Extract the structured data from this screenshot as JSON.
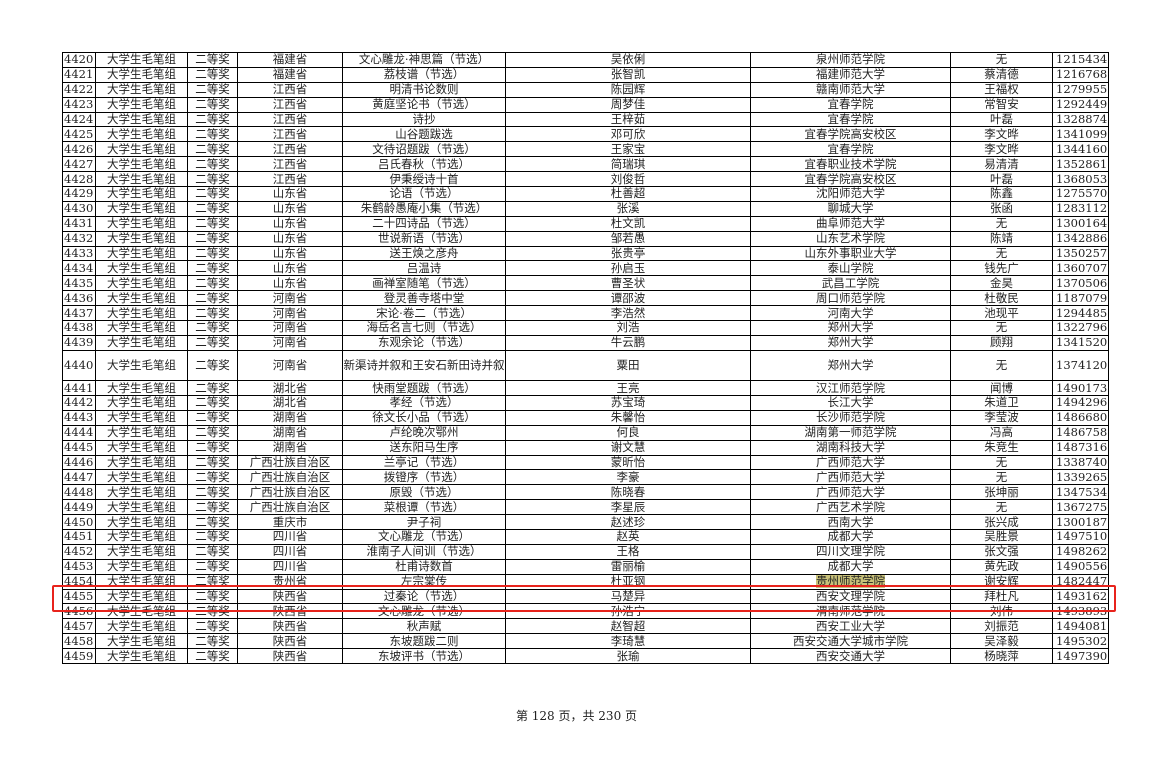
{
  "table": {
    "rows": [
      [
        "4420",
        "大学生毛笔组",
        "二等奖",
        "福建省",
        "文心雕龙·神思篇（节选）",
        "吴依俐",
        "泉州师范学院",
        "无",
        "1215434"
      ],
      [
        "4421",
        "大学生毛笔组",
        "二等奖",
        "福建省",
        "荔枝谱（节选）",
        "张智凯",
        "福建师范大学",
        "蔡清德",
        "1216768"
      ],
      [
        "4422",
        "大学生毛笔组",
        "二等奖",
        "江西省",
        "明清书论数则",
        "陈园辉",
        "赣南师范大学",
        "王福权",
        "1279955"
      ],
      [
        "4423",
        "大学生毛笔组",
        "二等奖",
        "江西省",
        "黄庭坚论书（节选）",
        "周梦佳",
        "宜春学院",
        "常智安",
        "1292449"
      ],
      [
        "4424",
        "大学生毛笔组",
        "二等奖",
        "江西省",
        "诗抄",
        "王梓茹",
        "宜春学院",
        "叶磊",
        "1328874"
      ],
      [
        "4425",
        "大学生毛笔组",
        "二等奖",
        "江西省",
        "山谷题跋选",
        "邓可欣",
        "宜春学院高安校区",
        "李文晔",
        "1341099"
      ],
      [
        "4426",
        "大学生毛笔组",
        "二等奖",
        "江西省",
        "文待诏题跋（节选）",
        "王家宝",
        "宜春学院",
        "李文晔",
        "1344160"
      ],
      [
        "4427",
        "大学生毛笔组",
        "二等奖",
        "江西省",
        "吕氏春秋（节选）",
        "简瑞琪",
        "宜春职业技术学院",
        "易清清",
        "1352861"
      ],
      [
        "4428",
        "大学生毛笔组",
        "二等奖",
        "江西省",
        "伊秉绶诗十首",
        "刘俊哲",
        "宜春学院高安校区",
        "叶磊",
        "1368053"
      ],
      [
        "4429",
        "大学生毛笔组",
        "二等奖",
        "山东省",
        "论语（节选）",
        "杜善超",
        "沈阳师范大学",
        "陈鑫",
        "1275570"
      ],
      [
        "4430",
        "大学生毛笔组",
        "二等奖",
        "山东省",
        "朱鹤龄愚庵小集（节选）",
        "张溪",
        "聊城大学",
        "张函",
        "1283112"
      ],
      [
        "4431",
        "大学生毛笔组",
        "二等奖",
        "山东省",
        "二十四诗品（节选）",
        "杜文凯",
        "曲阜师范大学",
        "无",
        "1300164"
      ],
      [
        "4432",
        "大学生毛笔组",
        "二等奖",
        "山东省",
        "世说新语（节选）",
        "邹若愚",
        "山东艺术学院",
        "陈靖",
        "1342886"
      ],
      [
        "4433",
        "大学生毛笔组",
        "二等奖",
        "山东省",
        "送王焕之彦舟",
        "张贵亭",
        "山东外事职业大学",
        "无",
        "1350257"
      ],
      [
        "4434",
        "大学生毛笔组",
        "二等奖",
        "山东省",
        "吕温诗",
        "孙启玉",
        "泰山学院",
        "钱先广",
        "1360707"
      ],
      [
        "4435",
        "大学生毛笔组",
        "二等奖",
        "山东省",
        "画禅室随笔（节选）",
        "曹圣状",
        "武昌工学院",
        "金昊",
        "1370506"
      ],
      [
        "4436",
        "大学生毛笔组",
        "二等奖",
        "河南省",
        "登灵善寺塔中堂",
        "谭邵波",
        "周口师范学院",
        "杜敬民",
        "1187079"
      ],
      [
        "4437",
        "大学生毛笔组",
        "二等奖",
        "河南省",
        "宋论·卷二（节选）",
        "李浩然",
        "河南大学",
        "池现平",
        "1294485"
      ],
      [
        "4438",
        "大学生毛笔组",
        "二等奖",
        "河南省",
        "海岳名言七则（节选）",
        "刘浩",
        "郑州大学",
        "无",
        "1322796"
      ],
      [
        "4439",
        "大学生毛笔组",
        "二等奖",
        "河南省",
        "东观余论（节选）",
        "牛云鹏",
        "郑州大学",
        "顾翔",
        "1341520"
      ],
      [
        "4440",
        "大学生毛笔组",
        "二等奖",
        "河南省",
        "新渠诗并叙和王安石新田诗并叙",
        "粟田",
        "郑州大学",
        "无",
        "1374120"
      ],
      [
        "4441",
        "大学生毛笔组",
        "二等奖",
        "湖北省",
        "快雨堂题跋（节选）",
        "王亮",
        "汉江师范学院",
        "闻博",
        "1490173"
      ],
      [
        "4442",
        "大学生毛笔组",
        "二等奖",
        "湖北省",
        "孝经（节选）",
        "苏宝琦",
        "长江大学",
        "朱道卫",
        "1494296"
      ],
      [
        "4443",
        "大学生毛笔组",
        "二等奖",
        "湖南省",
        "徐文长小品（节选）",
        "朱馨怡",
        "长沙师范学院",
        "李莹波",
        "1486680"
      ],
      [
        "4444",
        "大学生毛笔组",
        "二等奖",
        "湖南省",
        "卢纶晚次鄂州",
        "何良",
        "湖南第一师范学院",
        "冯高",
        "1486758"
      ],
      [
        "4445",
        "大学生毛笔组",
        "二等奖",
        "湖南省",
        "送东阳马生序",
        "谢文慧",
        "湖南科技大学",
        "朱竞生",
        "1487316"
      ],
      [
        "4446",
        "大学生毛笔组",
        "二等奖",
        "广西壮族自治区",
        "兰亭记（节选）",
        "蒙昕怡",
        "广西师范大学",
        "无",
        "1338740"
      ],
      [
        "4447",
        "大学生毛笔组",
        "二等奖",
        "广西壮族自治区",
        "拨镫序（节选）",
        "李豪",
        "广西师范大学",
        "无",
        "1339265"
      ],
      [
        "4448",
        "大学生毛笔组",
        "二等奖",
        "广西壮族自治区",
        "原毁（节选）",
        "陈晓春",
        "广西师范大学",
        "张坤丽",
        "1347534"
      ],
      [
        "4449",
        "大学生毛笔组",
        "二等奖",
        "广西壮族自治区",
        "菜根谭（节选）",
        "李星辰",
        "广西艺术学院",
        "无",
        "1367275"
      ],
      [
        "4450",
        "大学生毛笔组",
        "二等奖",
        "重庆市",
        "尹子祠",
        "赵述珍",
        "西南大学",
        "张兴成",
        "1300187"
      ],
      [
        "4451",
        "大学生毛笔组",
        "二等奖",
        "四川省",
        "文心雕龙（节选）",
        "赵英",
        "成都大学",
        "吴胜景",
        "1497510"
      ],
      [
        "4452",
        "大学生毛笔组",
        "二等奖",
        "四川省",
        "淮南子人间训（节选）",
        "王格",
        "四川文理学院",
        "张文强",
        "1498262"
      ],
      [
        "4453",
        "大学生毛笔组",
        "二等奖",
        "四川省",
        "杜甫诗数首",
        "雷丽榆",
        "成都大学",
        "黄先政",
        "1490556"
      ],
      [
        "4454",
        "大学生毛笔组",
        "二等奖",
        "贵州省",
        "左宗棠传",
        "杜亚钢",
        "贵州师范学院",
        "谢安辉",
        "1482447"
      ],
      [
        "4455",
        "大学生毛笔组",
        "二等奖",
        "陕西省",
        "过秦论（节选）",
        "马楚异",
        "西安文理学院",
        "拜杜凡",
        "1493162"
      ],
      [
        "4456",
        "大学生毛笔组",
        "二等奖",
        "陕西省",
        "文心雕龙（节选）",
        "孙浩宁",
        "渭南师范学院",
        "刘伟",
        "1493893"
      ],
      [
        "4457",
        "大学生毛笔组",
        "二等奖",
        "陕西省",
        "秋声赋",
        "赵智超",
        "西安工业大学",
        "刘振范",
        "1494081"
      ],
      [
        "4458",
        "大学生毛笔组",
        "二等奖",
        "陕西省",
        "东坡题跋二则",
        "李琦慧",
        "西安交通大学城市学院",
        "吴泽毅",
        "1495302"
      ],
      [
        "4459",
        "大学生毛笔组",
        "二等奖",
        "陕西省",
        "东坡评书（节选）",
        "张瑜",
        "西安交通大学",
        "杨晓萍",
        "1497390"
      ]
    ],
    "highlighted_row": "4454",
    "highlighted_cell_text": "贵州师范学院",
    "highlight_color": "#c9c27a",
    "box_color": "#e8231c"
  },
  "footer": {
    "page_label": "第 128 页，共 230 页"
  }
}
